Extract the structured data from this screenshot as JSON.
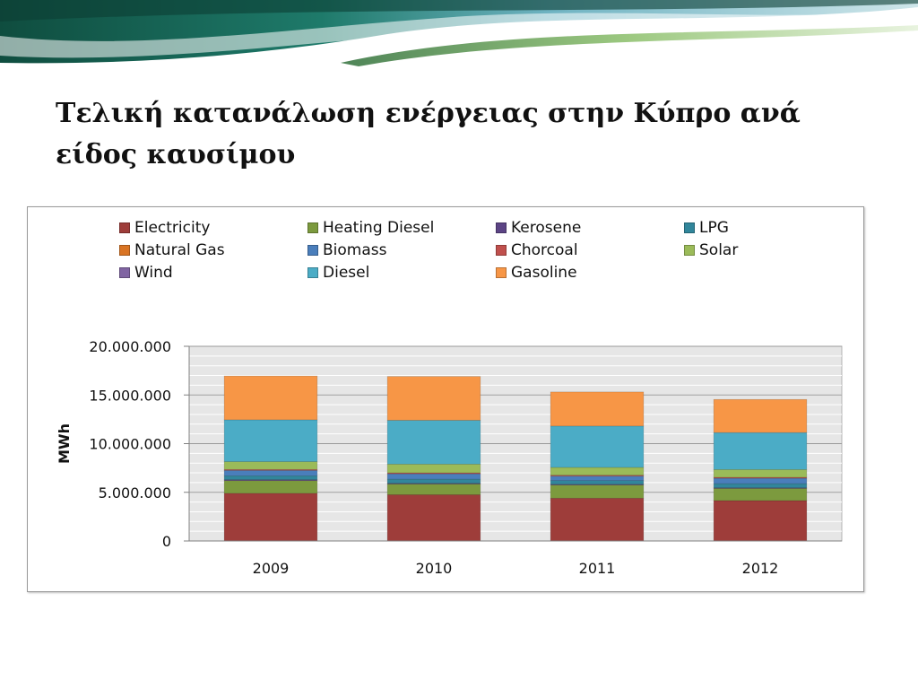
{
  "slide": {
    "title": "Τελική κατανάλωση ενέργειας στην Κύπρο ανά είδος καυσίμου"
  },
  "chart_data": {
    "type": "bar",
    "stacked": true,
    "categories": [
      "2009",
      "2010",
      "2011",
      "2012"
    ],
    "ylabel": "MWh",
    "ylim": [
      0,
      20000000
    ],
    "yticks": [
      0,
      5000000,
      10000000,
      15000000,
      20000000
    ],
    "ytick_labels": [
      "0",
      "5.000.000",
      "10.000.000",
      "15.000.000",
      "20.000.000"
    ],
    "grid": true,
    "legend_position": "top",
    "series": [
      {
        "name": "Electricity",
        "color": "#9e3d3a",
        "values": [
          4900000,
          4750000,
          4400000,
          4150000
        ]
      },
      {
        "name": "Heating Diesel",
        "color": "#7c9a3e",
        "values": [
          1300000,
          1100000,
          1350000,
          1250000
        ]
      },
      {
        "name": "Kerosene",
        "color": "#5c4485",
        "values": [
          100000,
          80000,
          80000,
          70000
        ]
      },
      {
        "name": "LPG",
        "color": "#31869b",
        "values": [
          400000,
          420000,
          380000,
          420000
        ]
      },
      {
        "name": "Natural Gas",
        "color": "#d97424",
        "values": [
          0,
          0,
          0,
          0
        ]
      },
      {
        "name": "Biomass",
        "color": "#4a7ebb",
        "values": [
          550000,
          550000,
          450000,
          550000
        ]
      },
      {
        "name": "Chorcoal",
        "color": "#c0504d",
        "values": [
          100000,
          100000,
          100000,
          100000
        ]
      },
      {
        "name": "Solar",
        "color": "#9bbb59",
        "values": [
          800000,
          900000,
          800000,
          800000
        ]
      },
      {
        "name": "Wind",
        "color": "#8064a2",
        "values": [
          0,
          0,
          0,
          0
        ]
      },
      {
        "name": "Diesel",
        "color": "#4bacc6",
        "values": [
          4300000,
          4500000,
          4250000,
          3800000
        ]
      },
      {
        "name": "Gasoline",
        "color": "#f79646",
        "values": [
          4500000,
          4500000,
          3500000,
          3400000
        ]
      }
    ]
  }
}
